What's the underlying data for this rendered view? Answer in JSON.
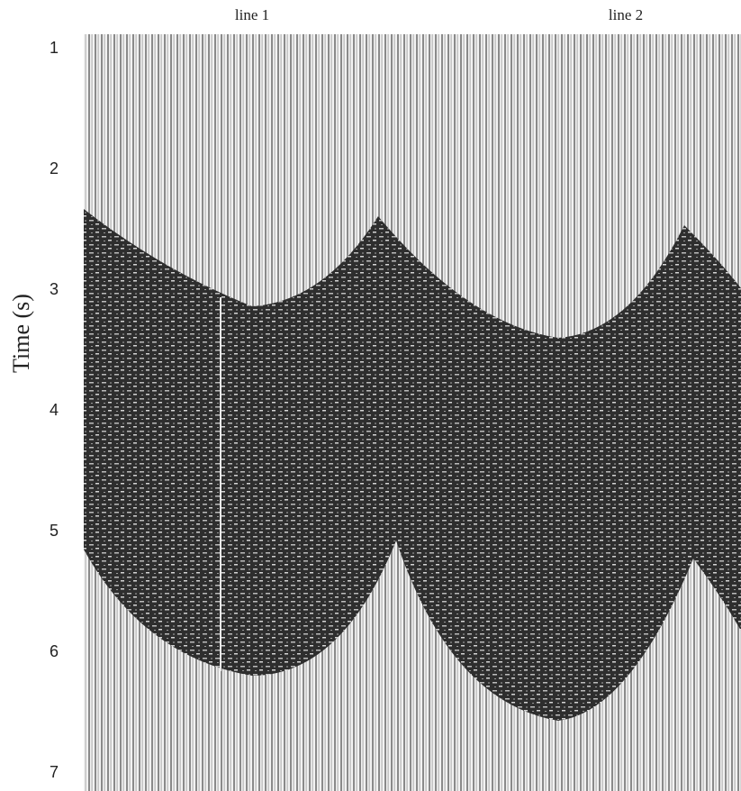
{
  "chart_data": {
    "type": "seismic-section",
    "y_label": "Time (s)",
    "ylim": [
      1,
      7
    ],
    "yticks": [
      1,
      2,
      3,
      4,
      5,
      6,
      7
    ],
    "y_inverted": true,
    "annotations": [
      "line 1",
      "line 2"
    ]
  }
}
